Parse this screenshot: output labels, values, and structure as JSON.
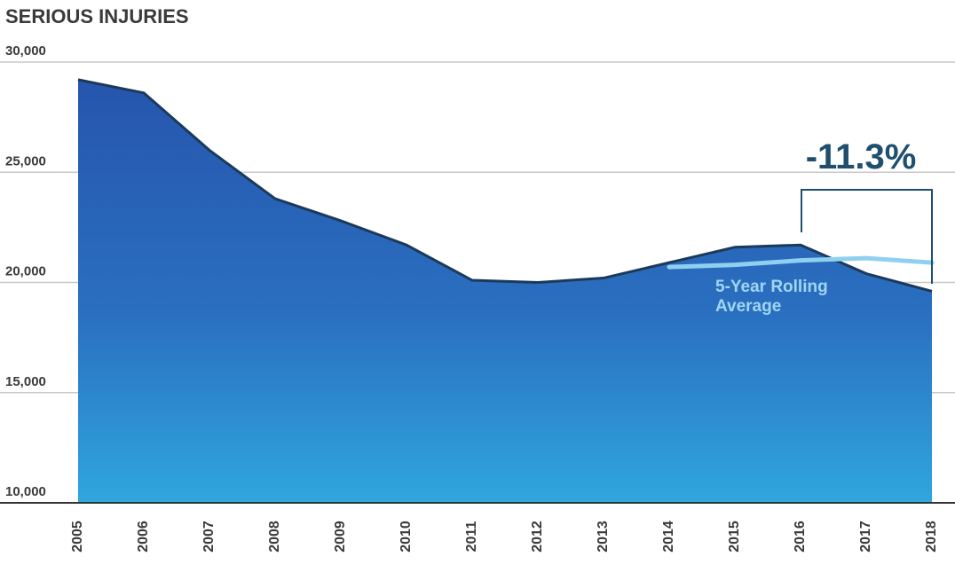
{
  "chart_data": {
    "type": "area",
    "title": "SERIOUS INJURIES",
    "categories": [
      "2005",
      "2006",
      "2007",
      "2008",
      "2009",
      "2010",
      "2011",
      "2012",
      "2013",
      "2014",
      "2015",
      "2016",
      "2017",
      "2018"
    ],
    "series": [
      {
        "name": "Serious Injuries",
        "color": "#1b3a5a",
        "values": [
          29200,
          28600,
          26000,
          23800,
          22800,
          21700,
          20100,
          20000,
          20200,
          20900,
          21600,
          21700,
          20400,
          19600
        ]
      },
      {
        "name": "5-Year Rolling Average",
        "color": "#8fd0f0",
        "values": [
          null,
          null,
          null,
          null,
          null,
          null,
          null,
          null,
          null,
          20700,
          20800,
          21000,
          21100,
          20900
        ]
      }
    ],
    "ylim": [
      10000,
      30000
    ],
    "yticks": [
      {
        "value": 10000,
        "label": "10,000"
      },
      {
        "value": 15000,
        "label": "15,000"
      },
      {
        "value": 20000,
        "label": "20,000"
      },
      {
        "value": 25000,
        "label": "25,000"
      },
      {
        "value": 30000,
        "label": "30,000"
      }
    ],
    "grid": true,
    "annotation": "-11.3%"
  }
}
